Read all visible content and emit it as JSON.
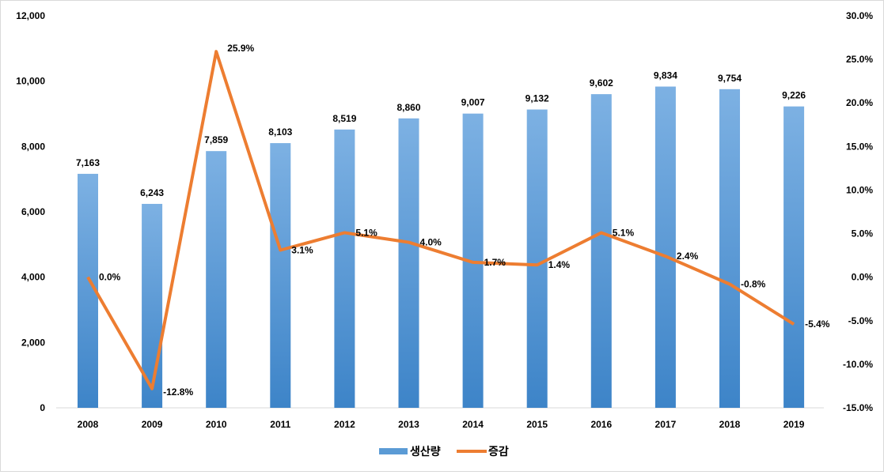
{
  "chart_data": {
    "type": "bar+line",
    "categories": [
      "2008",
      "2009",
      "2010",
      "2011",
      "2012",
      "2013",
      "2014",
      "2015",
      "2016",
      "2017",
      "2018",
      "2019"
    ],
    "series": [
      {
        "name": "생산량",
        "type": "bar",
        "axis": "left",
        "color": "#5b9bd5",
        "values": [
          7163,
          6243,
          7859,
          8103,
          8519,
          8860,
          9007,
          9132,
          9602,
          9834,
          9754,
          9226
        ],
        "labels": [
          "7,163",
          "6,243",
          "7,859",
          "8,103",
          "8,519",
          "8,860",
          "9,007",
          "9,132",
          "9,602",
          "9,834",
          "9,754",
          "9,226"
        ]
      },
      {
        "name": "증감",
        "type": "line",
        "axis": "right",
        "color": "#ed7d31",
        "values": [
          0.0,
          -12.8,
          25.9,
          3.1,
          5.1,
          4.0,
          1.7,
          1.4,
          5.1,
          2.4,
          -0.8,
          -5.4
        ],
        "labels": [
          "0.0%",
          "-12.8%",
          "25.9%",
          "3.1%",
          "5.1%",
          "4.0%",
          "1.7%",
          "1.4%",
          "5.1%",
          "2.4%",
          "-0.8%",
          "-5.4%"
        ]
      }
    ],
    "y_left": {
      "range": [
        0,
        12000
      ],
      "ticks": [
        "0",
        "2,000",
        "4,000",
        "6,000",
        "8,000",
        "10,000",
        "12,000"
      ]
    },
    "y_right": {
      "range": [
        -15,
        30
      ],
      "ticks": [
        "-15.0%",
        "-10.0%",
        "-5.0%",
        "0.0%",
        "5.0%",
        "10.0%",
        "15.0%",
        "20.0%",
        "25.0%",
        "30.0%"
      ]
    },
    "grid": false,
    "legend": "bottom"
  }
}
